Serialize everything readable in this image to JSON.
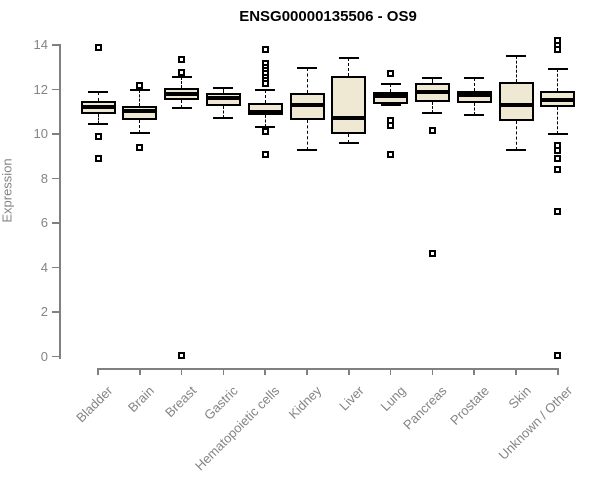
{
  "title": "ENSG00000135506 - OS9",
  "colors": {
    "background": "#FFFFFF",
    "box_fill": "#EFE9D3",
    "box_border": "#000000",
    "median": "#000000",
    "axis": "#808080",
    "label_text": "#848484",
    "title_text": "#000000"
  },
  "chart_data": {
    "type": "boxplot",
    "title": "ENSG00000135506 - OS9",
    "xlabel": "",
    "ylabel": "Expression",
    "ylim": [
      0,
      14
    ],
    "yticks": [
      0,
      2,
      4,
      6,
      8,
      10,
      12,
      14
    ],
    "grid": false,
    "legend": false,
    "categories": [
      "Bladder",
      "Brain",
      "Breast",
      "Gastric",
      "Hematopoietic cells",
      "Kidney",
      "Liver",
      "Lung",
      "Pancreas",
      "Prostate",
      "Skin",
      "Unknown / Other"
    ],
    "series": [
      {
        "name": "Bladder",
        "whisker_low": 10.45,
        "q1": 10.9,
        "median": 11.2,
        "q3": 11.5,
        "whisker_high": 11.9,
        "outliers": [
          13.9,
          9.9,
          8.9
        ]
      },
      {
        "name": "Brain",
        "whisker_low": 10.05,
        "q1": 10.65,
        "median": 11.05,
        "q3": 11.25,
        "whisker_high": 12.0,
        "outliers": [
          12.2,
          9.4
        ]
      },
      {
        "name": "Breast",
        "whisker_low": 11.15,
        "q1": 11.55,
        "median": 11.8,
        "q3": 12.05,
        "whisker_high": 12.55,
        "outliers": [
          13.35,
          12.75,
          0.05
        ]
      },
      {
        "name": "Gastric",
        "whisker_low": 10.7,
        "q1": 11.25,
        "median": 11.6,
        "q3": 11.85,
        "whisker_high": 12.05,
        "outliers": []
      },
      {
        "name": "Hematopoietic cells",
        "whisker_low": 10.3,
        "q1": 10.85,
        "median": 11.0,
        "q3": 11.4,
        "whisker_high": 12.0,
        "outliers": [
          13.8,
          13.15,
          13.0,
          12.85,
          12.7,
          12.55,
          12.4,
          12.25,
          10.1,
          9.1
        ]
      },
      {
        "name": "Kidney",
        "whisker_low": 9.3,
        "q1": 10.65,
        "median": 11.3,
        "q3": 11.85,
        "whisker_high": 12.95,
        "outliers": []
      },
      {
        "name": "Liver",
        "whisker_low": 9.6,
        "q1": 10.0,
        "median": 10.7,
        "q3": 12.6,
        "whisker_high": 13.4,
        "outliers": []
      },
      {
        "name": "Lung",
        "whisker_low": 11.3,
        "q1": 11.35,
        "median": 11.7,
        "q3": 11.9,
        "whisker_high": 12.25,
        "outliers": [
          12.7,
          10.6,
          10.4,
          9.1
        ]
      },
      {
        "name": "Pancreas",
        "whisker_low": 10.95,
        "q1": 11.45,
        "median": 11.9,
        "q3": 12.3,
        "whisker_high": 12.5,
        "outliers": [
          10.15,
          4.65
        ]
      },
      {
        "name": "Prostate",
        "whisker_low": 10.85,
        "q1": 11.4,
        "median": 11.75,
        "q3": 11.95,
        "whisker_high": 12.5,
        "outliers": []
      },
      {
        "name": "Skin",
        "whisker_low": 9.3,
        "q1": 10.6,
        "median": 11.3,
        "q3": 12.35,
        "whisker_high": 13.5,
        "outliers": []
      },
      {
        "name": "Unknown / Other",
        "whisker_low": 10.0,
        "q1": 11.2,
        "median": 11.55,
        "q3": 11.95,
        "whisker_high": 12.9,
        "outliers": [
          14.2,
          14.0,
          13.8,
          9.5,
          9.25,
          8.9,
          8.4,
          6.5,
          0.05
        ]
      }
    ]
  }
}
